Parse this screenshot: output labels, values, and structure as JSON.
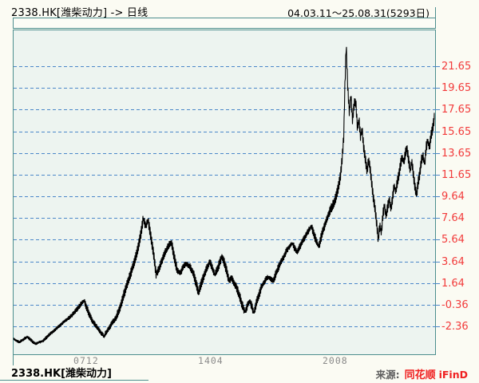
{
  "header": {
    "title_left": "2338.HK[潍柴动力] -> 日线",
    "title_right": "04.03.11～25.08.31(5293日)"
  },
  "footer": {
    "symbol_label": "2338.HK[潍柴动力]",
    "source_prefix": "来源:",
    "source_brand": "同花顺",
    "source_suffix": "iFinD"
  },
  "colors": {
    "frame_teal": "#4d8e8e",
    "grid_blue": "#4b87c9",
    "axis_label_red": "#f23b3b",
    "x_label_gray": "#8a8a8a",
    "plot_bg": "#edf4f0",
    "strip_bg": "#fcfcf6",
    "line_black": "#000000",
    "brand_red": "#f02020"
  },
  "chart_data": {
    "type": "line",
    "symbol": "2338.HK",
    "name": "潍柴动力",
    "period": "日线",
    "date_range": "04.03.11～25.08.31(5293日)",
    "days": 5293,
    "grid": "horizontal-dashed",
    "legend": "none",
    "x_range_years": [
      2004.19,
      2025.66
    ],
    "ylim": [
      -4.93,
      25.04
    ],
    "y_ticks": [
      21.65,
      19.65,
      17.65,
      15.65,
      13.65,
      11.65,
      9.64,
      7.64,
      5.64,
      3.64,
      1.64,
      -0.36,
      -2.36
    ],
    "x_ticks": [
      {
        "label": "0712",
        "year": 2007.92
      },
      {
        "label": "1404",
        "year": 2014.25
      },
      {
        "label": "2008",
        "year": 2020.58
      }
    ],
    "series": [
      {
        "name": "price",
        "points": [
          [
            2004.19,
            -3.46
          ],
          [
            2004.52,
            -3.83
          ],
          [
            2004.92,
            -3.31
          ],
          [
            2005.33,
            -3.98
          ],
          [
            2005.74,
            -3.68
          ],
          [
            2006.02,
            -3.16
          ],
          [
            2006.35,
            -2.65
          ],
          [
            2006.76,
            -1.99
          ],
          [
            2007.16,
            -1.4
          ],
          [
            2007.45,
            -0.81
          ],
          [
            2007.69,
            -0.22
          ],
          [
            2007.82,
            0.0
          ],
          [
            2007.94,
            -0.59
          ],
          [
            2008.1,
            -1.32
          ],
          [
            2008.26,
            -1.91
          ],
          [
            2008.47,
            -2.43
          ],
          [
            2008.67,
            -2.94
          ],
          [
            2008.83,
            -3.24
          ],
          [
            2009.04,
            -2.65
          ],
          [
            2009.24,
            -2.06
          ],
          [
            2009.44,
            -1.55
          ],
          [
            2009.65,
            -0.59
          ],
          [
            2009.85,
            0.66
          ],
          [
            2010.06,
            1.84
          ],
          [
            2010.22,
            2.72
          ],
          [
            2010.38,
            3.61
          ],
          [
            2010.55,
            4.79
          ],
          [
            2010.71,
            6.26
          ],
          [
            2010.83,
            7.66
          ],
          [
            2010.95,
            6.85
          ],
          [
            2011.07,
            7.44
          ],
          [
            2011.2,
            6.04
          ],
          [
            2011.36,
            4.2
          ],
          [
            2011.48,
            2.36
          ],
          [
            2011.64,
            3.02
          ],
          [
            2011.81,
            3.9
          ],
          [
            2011.97,
            4.57
          ],
          [
            2012.13,
            5.15
          ],
          [
            2012.26,
            5.37
          ],
          [
            2012.38,
            4.2
          ],
          [
            2012.54,
            2.87
          ],
          [
            2012.7,
            2.58
          ],
          [
            2012.87,
            3.17
          ],
          [
            2013.03,
            3.46
          ],
          [
            2013.19,
            3.17
          ],
          [
            2013.36,
            2.58
          ],
          [
            2013.52,
            1.55
          ],
          [
            2013.64,
            0.74
          ],
          [
            2013.76,
            1.55
          ],
          [
            2013.93,
            2.43
          ],
          [
            2014.09,
            3.17
          ],
          [
            2014.21,
            3.61
          ],
          [
            2014.33,
            3.02
          ],
          [
            2014.46,
            2.43
          ],
          [
            2014.58,
            2.87
          ],
          [
            2014.7,
            3.46
          ],
          [
            2014.82,
            4.12
          ],
          [
            2014.95,
            3.46
          ],
          [
            2015.07,
            2.72
          ],
          [
            2015.19,
            1.84
          ],
          [
            2015.31,
            2.14
          ],
          [
            2015.43,
            1.7
          ],
          [
            2015.56,
            1.26
          ],
          [
            2015.68,
            0.66
          ],
          [
            2015.8,
            -0.07
          ],
          [
            2015.92,
            -0.66
          ],
          [
            2016.0,
            -1.03
          ],
          [
            2016.13,
            -0.37
          ],
          [
            2016.25,
            0.0
          ],
          [
            2016.37,
            -0.66
          ],
          [
            2016.45,
            -1.1
          ],
          [
            2016.57,
            -0.22
          ],
          [
            2016.7,
            0.51
          ],
          [
            2016.82,
            1.26
          ],
          [
            2016.94,
            1.62
          ],
          [
            2017.06,
            1.99
          ],
          [
            2017.19,
            2.21
          ],
          [
            2017.31,
            1.99
          ],
          [
            2017.43,
            1.84
          ],
          [
            2017.55,
            2.43
          ],
          [
            2017.67,
            2.95
          ],
          [
            2017.8,
            3.53
          ],
          [
            2017.92,
            3.9
          ],
          [
            2018.04,
            4.35
          ],
          [
            2018.16,
            4.79
          ],
          [
            2018.29,
            5.08
          ],
          [
            2018.41,
            5.3
          ],
          [
            2018.53,
            4.79
          ],
          [
            2018.65,
            4.5
          ],
          [
            2018.77,
            4.94
          ],
          [
            2018.9,
            5.45
          ],
          [
            2019.02,
            5.82
          ],
          [
            2019.14,
            6.19
          ],
          [
            2019.26,
            6.56
          ],
          [
            2019.38,
            6.85
          ],
          [
            2019.51,
            6.11
          ],
          [
            2019.63,
            5.45
          ],
          [
            2019.75,
            5.01
          ],
          [
            2019.87,
            5.89
          ],
          [
            2020.0,
            6.7
          ],
          [
            2020.12,
            7.36
          ],
          [
            2020.24,
            7.95
          ],
          [
            2020.36,
            8.47
          ],
          [
            2020.48,
            8.91
          ],
          [
            2020.61,
            9.5
          ],
          [
            2020.73,
            10.38
          ],
          [
            2020.85,
            11.56
          ],
          [
            2020.93,
            13.03
          ],
          [
            2021.02,
            15.24
          ],
          [
            2021.06,
            18.93
          ],
          [
            2021.14,
            23.71
          ],
          [
            2021.22,
            19.66
          ],
          [
            2021.3,
            17.45
          ],
          [
            2021.38,
            18.93
          ],
          [
            2021.46,
            16.72
          ],
          [
            2021.55,
            18.19
          ],
          [
            2021.63,
            18.34
          ],
          [
            2021.71,
            15.98
          ],
          [
            2021.79,
            16.72
          ],
          [
            2021.87,
            15.1
          ],
          [
            2021.95,
            15.83
          ],
          [
            2022.03,
            14.14
          ],
          [
            2022.12,
            13.03
          ],
          [
            2022.2,
            11.93
          ],
          [
            2022.28,
            13.03
          ],
          [
            2022.36,
            12.15
          ],
          [
            2022.44,
            10.83
          ],
          [
            2022.52,
            9.5
          ],
          [
            2022.6,
            8.62
          ],
          [
            2022.69,
            7.14
          ],
          [
            2022.77,
            5.67
          ],
          [
            2022.85,
            7.0
          ],
          [
            2022.93,
            6.26
          ],
          [
            2023.01,
            8.03
          ],
          [
            2023.09,
            8.76
          ],
          [
            2023.17,
            7.88
          ],
          [
            2023.26,
            8.76
          ],
          [
            2023.34,
            9.35
          ],
          [
            2023.42,
            8.47
          ],
          [
            2023.5,
            9.5
          ],
          [
            2023.58,
            10.68
          ],
          [
            2023.66,
            10.09
          ],
          [
            2023.74,
            10.97
          ],
          [
            2023.83,
            11.71
          ],
          [
            2023.91,
            12.67
          ],
          [
            2023.99,
            13.33
          ],
          [
            2024.07,
            12.74
          ],
          [
            2024.15,
            13.62
          ],
          [
            2024.23,
            14.14
          ],
          [
            2024.31,
            13.03
          ],
          [
            2024.4,
            12.0
          ],
          [
            2024.48,
            12.89
          ],
          [
            2024.56,
            11.56
          ],
          [
            2024.64,
            10.46
          ],
          [
            2024.72,
            9.79
          ],
          [
            2024.8,
            10.97
          ],
          [
            2024.88,
            11.71
          ],
          [
            2024.97,
            13.03
          ],
          [
            2025.05,
            13.33
          ],
          [
            2025.13,
            12.59
          ],
          [
            2025.21,
            14.21
          ],
          [
            2025.29,
            14.8
          ],
          [
            2025.37,
            14.07
          ],
          [
            2025.45,
            15.24
          ],
          [
            2025.53,
            15.83
          ],
          [
            2025.61,
            16.72
          ],
          [
            2025.66,
            17.53
          ]
        ]
      }
    ]
  }
}
